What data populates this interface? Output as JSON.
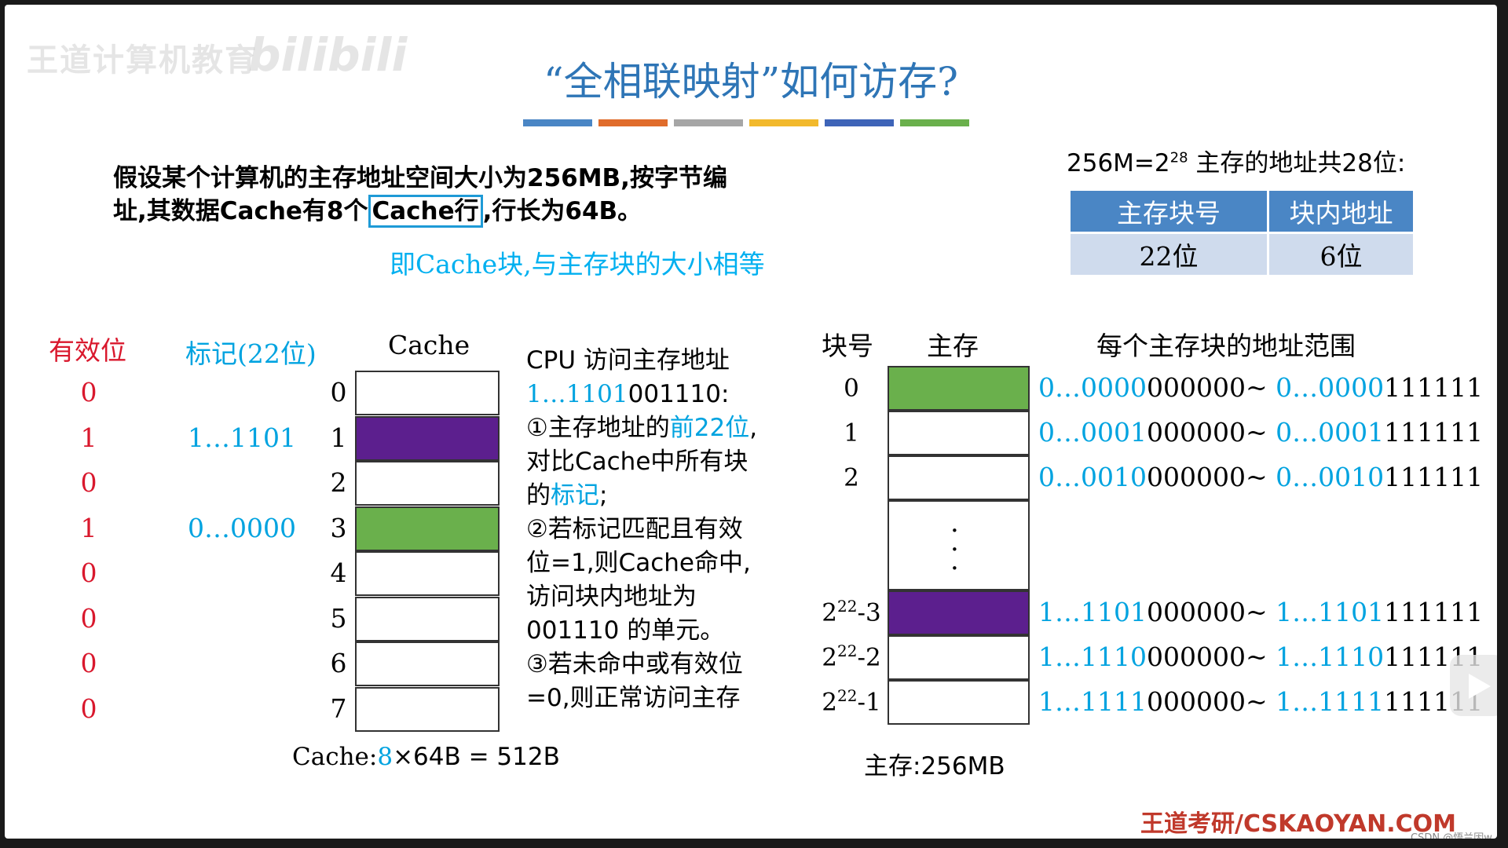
{
  "watermark": {
    "org": "王道计算机教育",
    "site": "bilibili"
  },
  "title": "“全相联映射”如何访存?",
  "title_bar_colors": [
    "#4a86c5",
    "#e06c2b",
    "#a6a6a6",
    "#f2b92c",
    "#3e64b8",
    "#6ab04c"
  ],
  "problem": {
    "line1": "假设某个计算机的主存地址空间大小为256MB,按字节编",
    "line2_pre": "址,其数据Cache有8个",
    "line2_hl": "Cache行",
    "line2_post": ",行长为64B。",
    "note": "即Cache块,与主存块的大小相等"
  },
  "address": {
    "summary_base": "256M=2",
    "summary_exp": "28",
    "summary_text": " 主存的地址共28位:",
    "headers": [
      "主存块号",
      "块内地址"
    ],
    "values": [
      "22位",
      "6位"
    ]
  },
  "cache": {
    "header_valid": "有效位",
    "header_tag": "标记(22位)",
    "header_cache": "Cache",
    "valid_bits": [
      "0",
      "1",
      "0",
      "1",
      "0",
      "0",
      "0",
      "0"
    ],
    "tags": [
      "",
      "1…1101",
      "",
      "0…0000",
      "",
      "",
      "",
      ""
    ],
    "indices": [
      "0",
      "1",
      "2",
      "3",
      "4",
      "5",
      "6",
      "7"
    ],
    "line_fills": [
      "#ffffff",
      "#5c1f8e",
      "#ffffff",
      "#6ab04c",
      "#ffffff",
      "#ffffff",
      "#ffffff",
      "#ffffff"
    ],
    "summary_label": "Cache:",
    "summary_count": "8",
    "summary_rest": "×64B = 512B"
  },
  "cpu": {
    "line1": "CPU 访问主存地址",
    "addr_blue": "1…1101",
    "addr_black": "001110:",
    "s1_a": "①主存地址的",
    "s1_b": "前22位",
    "s1_c": ",",
    "s1_d": "对比Cache中所有块",
    "s1_e": "的",
    "s1_f": "标记",
    "s1_g": ";",
    "s2_a": "②若标记匹配且有效",
    "s2_b": "位=1,则Cache命中,",
    "s2_c": "访问块内地址为",
    "s2_d": "001110 的单元。",
    "s3_a": "③若未命中或有效位",
    "s3_b": "=0,则正常访问主存"
  },
  "memory": {
    "header_blockno": "块号",
    "header_mem": "主存",
    "header_range": "每个主存块的地址范围",
    "block_labels": [
      "0",
      "1",
      "2",
      "",
      "2",
      "2",
      "2"
    ],
    "block_sups": [
      "",
      "",
      "",
      "",
      "22",
      "22",
      "22"
    ],
    "block_subs": [
      "",
      "",
      "",
      "",
      "-3",
      "-2",
      "-1"
    ],
    "cell_fills": [
      "#6ab04c",
      "#ffffff",
      "#ffffff",
      "#ffffff",
      "#5c1f8e",
      "#ffffff",
      "#ffffff"
    ],
    "ranges": [
      {
        "a": "0…0000",
        "b": "000000~ ",
        "c": "0…0000",
        "d": "111111"
      },
      {
        "a": "0…0001",
        "b": "000000~ ",
        "c": "0…0001",
        "d": "111111"
      },
      {
        "a": "0…0010",
        "b": "000000~ ",
        "c": "0…0010",
        "d": "111111"
      },
      {
        "a": "1…1101",
        "b": "000000~ ",
        "c": "1…1101",
        "d": "111111"
      },
      {
        "a": "1…1110",
        "b": "000000~ ",
        "c": "1…1110",
        "d": "111111"
      },
      {
        "a": "1…1111",
        "b": "000000~ ",
        "c": "1…1111",
        "d": "111111"
      }
    ],
    "summary": "主存:256MB"
  },
  "footer": "王道考研/CSKAOYAN.COM",
  "credit": "CSDN @悟兰因w"
}
